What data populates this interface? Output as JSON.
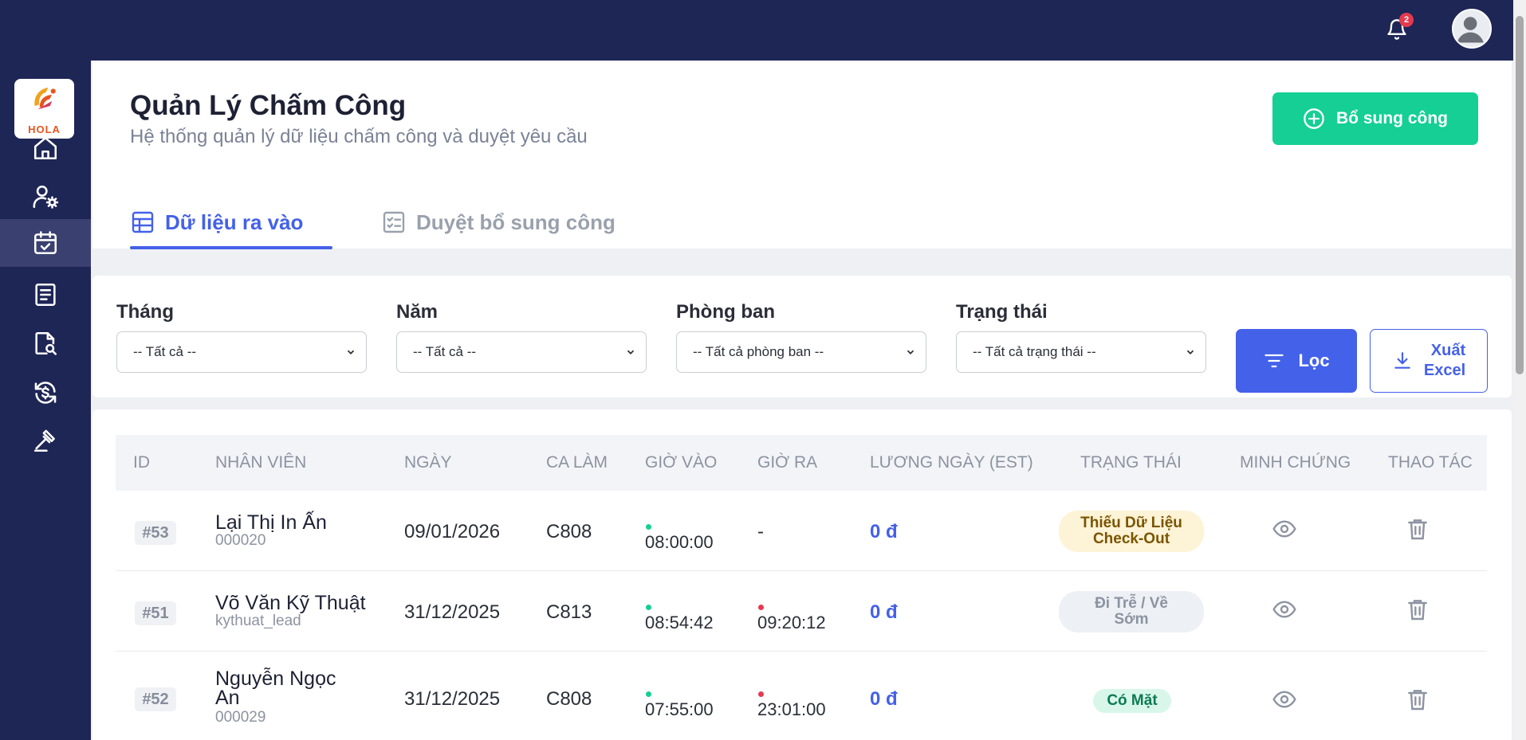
{
  "topbar": {
    "notification_count": "2",
    "icons": [
      "bell-icon",
      "user-avatar-icon"
    ]
  },
  "sidebar": {
    "logo_text": "HOLA",
    "items": [
      {
        "icon": "home-icon",
        "active": false
      },
      {
        "icon": "user-settings-icon",
        "active": false
      },
      {
        "icon": "calendar-check-icon",
        "active": true
      },
      {
        "icon": "document-icon",
        "active": false
      },
      {
        "icon": "file-search-icon",
        "active": false
      },
      {
        "icon": "dollar-refresh-icon",
        "active": false
      },
      {
        "icon": "gavel-icon",
        "active": false
      }
    ]
  },
  "header": {
    "title": "Quản Lý Chấm Công",
    "subtitle": "Hệ thống quản lý dữ liệu chấm công và duyệt yêu cầu",
    "add_button": "Bổ sung công"
  },
  "tabs": [
    {
      "label": "Dữ liệu ra vào",
      "active": true
    },
    {
      "label": "Duyệt bổ sung công",
      "active": false
    }
  ],
  "filters": {
    "month": {
      "label": "Tháng",
      "value": "-- Tất cả --"
    },
    "year": {
      "label": "Năm",
      "value": "-- Tất cả --"
    },
    "department": {
      "label": "Phòng ban",
      "value": "-- Tất cả phòng ban --"
    },
    "status": {
      "label": "Trạng thái",
      "value": "-- Tất cả trạng thái --"
    },
    "filter_button": "Lọc",
    "export_button_line1": "Xuất",
    "export_button_line2": "Excel"
  },
  "table": {
    "columns": [
      "ID",
      "NHÂN VIÊN",
      "NGÀY",
      "CA LÀM",
      "GIỜ VÀO",
      "GIỜ RA",
      "LƯƠNG NGÀY (EST)",
      "TRẠNG THÁI",
      "MINH CHỨNG",
      "THAO TÁC"
    ],
    "rows": [
      {
        "id": "#53",
        "name": "Lại Thị In Ấn",
        "code": "000020",
        "date": "09/01/2026",
        "shift": "C808",
        "time_in": "08:00:00",
        "time_out": "-",
        "wage": "0 đ",
        "status_line1": "Thiếu Dữ Liệu",
        "status_line2": "Check-Out",
        "status_type": "warn"
      },
      {
        "id": "#51",
        "name": "Võ Văn Kỹ Thuật",
        "code": "kythuat_lead",
        "date": "31/12/2025",
        "shift": "C813",
        "time_in": "08:54:42",
        "time_out": "09:20:12",
        "wage": "0 đ",
        "status_line1": "Đi Trễ / Về",
        "status_line2": "Sớm",
        "status_type": "gray"
      },
      {
        "id": "#52",
        "name_line1": "Nguyễn Ngọc",
        "name_line2": "An",
        "code": "000029",
        "date": "31/12/2025",
        "shift": "C808",
        "time_in": "07:55:00",
        "time_out": "23:01:00",
        "wage": "0 đ",
        "status_line1": "Có Mặt",
        "status_type": "ok"
      }
    ]
  },
  "colors": {
    "sidebar_bg": "#1e2656",
    "accent_blue": "#4461e9",
    "accent_green": "#15cf94",
    "danger": "#e53950"
  }
}
